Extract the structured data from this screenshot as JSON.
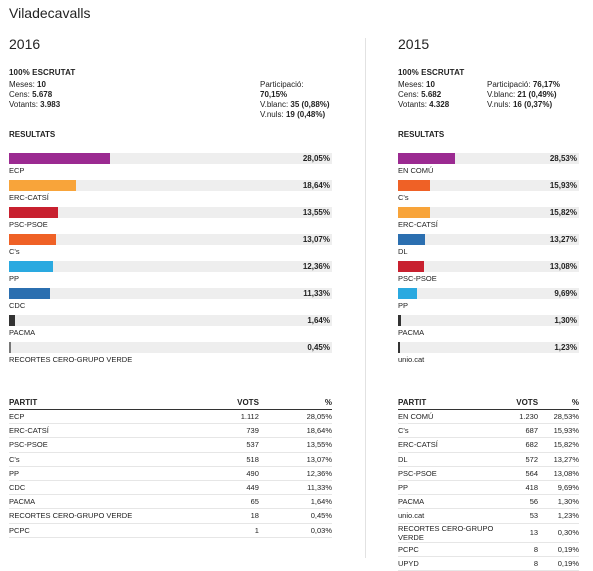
{
  "page_title": "Viladecavalls",
  "colors": {
    "ECP": "#9b2a91",
    "ERC-CATSÍ": "#f8a43a",
    "PSC-PSOE": "#c8202f",
    "C's": "#ef6126",
    "PP": "#2aa9e0",
    "CDC": "#2b6fb0",
    "PACMA": "#333333",
    "RECORTES CERO-GRUPO VERDE": "#777777",
    "EN COMÚ": "#9b2a91",
    "DL": "#2b6fb0",
    "unio.cat": "#333333"
  },
  "elections": [
    {
      "year": "2016",
      "scrutiny": "100% ESCRUTAT",
      "meses_label": "Meses:",
      "meses": "10",
      "cens_label": "Cens:",
      "cens": "5.678",
      "votants_label": "Votants:",
      "votants": "3.983",
      "participacio_label": "Participació:",
      "participacio": "70,15%",
      "vblanc_label": "V.blanc:",
      "vblanc": "35 (0,88%)",
      "vnuls_label": "V.nuls:",
      "vnuls": "19 (0,48%)",
      "results_title": "RESULTATS",
      "bars": [
        {
          "party": "ECP",
          "pct": "28,05%",
          "value": 28.05
        },
        {
          "party": "ERC-CATSÍ",
          "pct": "18,64%",
          "value": 18.64
        },
        {
          "party": "PSC-PSOE",
          "pct": "13,55%",
          "value": 13.55
        },
        {
          "party": "C's",
          "pct": "13,07%",
          "value": 13.07
        },
        {
          "party": "PP",
          "pct": "12,36%",
          "value": 12.36
        },
        {
          "party": "CDC",
          "pct": "11,33%",
          "value": 11.33
        },
        {
          "party": "PACMA",
          "pct": "1,64%",
          "value": 1.64
        },
        {
          "party": "RECORTES CERO-GRUPO VERDE",
          "pct": "0,45%",
          "value": 0.45
        }
      ],
      "table": {
        "headers": [
          "PARTIT",
          "VOTS",
          "%"
        ],
        "rows": [
          [
            "ECP",
            "1.112",
            "28,05%"
          ],
          [
            "ERC-CATSÍ",
            "739",
            "18,64%"
          ],
          [
            "PSC-PSOE",
            "537",
            "13,55%"
          ],
          [
            "C's",
            "518",
            "13,07%"
          ],
          [
            "PP",
            "490",
            "12,36%"
          ],
          [
            "CDC",
            "449",
            "11,33%"
          ],
          [
            "PACMA",
            "65",
            "1,64%"
          ],
          [
            "RECORTES CERO-GRUPO VERDE",
            "18",
            "0,45%"
          ],
          [
            "PCPC",
            "1",
            "0,03%"
          ]
        ]
      }
    },
    {
      "year": "2015",
      "scrutiny": "100% ESCRUTAT",
      "meses_label": "Meses:",
      "meses": "10",
      "cens_label": "Cens:",
      "cens": "5.682",
      "votants_label": "Votants:",
      "votants": "4.328",
      "participacio_label": "Participació:",
      "participacio": "76,17%",
      "vblanc_label": "V.blanc:",
      "vblanc": "21 (0,49%)",
      "vnuls_label": "V.nuls:",
      "vnuls": "16 (0,37%)",
      "results_title": "RESULTATS",
      "bars": [
        {
          "party": "EN COMÚ",
          "pct": "28,53%",
          "value": 28.53
        },
        {
          "party": "C's",
          "pct": "15,93%",
          "value": 15.93
        },
        {
          "party": "ERC-CATSÍ",
          "pct": "15,82%",
          "value": 15.82
        },
        {
          "party": "DL",
          "pct": "13,27%",
          "value": 13.27
        },
        {
          "party": "PSC-PSOE",
          "pct": "13,08%",
          "value": 13.08
        },
        {
          "party": "PP",
          "pct": "9,69%",
          "value": 9.69
        },
        {
          "party": "PACMA",
          "pct": "1,30%",
          "value": 1.3
        },
        {
          "party": "unio.cat",
          "pct": "1,23%",
          "value": 1.23
        }
      ],
      "table": {
        "headers": [
          "PARTIT",
          "VOTS",
          "%"
        ],
        "rows": [
          [
            "EN COMÚ",
            "1.230",
            "28,53%"
          ],
          [
            "C's",
            "687",
            "15,93%"
          ],
          [
            "ERC-CATSÍ",
            "682",
            "15,82%"
          ],
          [
            "DL",
            "572",
            "13,27%"
          ],
          [
            "PSC-PSOE",
            "564",
            "13,08%"
          ],
          [
            "PP",
            "418",
            "9,69%"
          ],
          [
            "PACMA",
            "56",
            "1,30%"
          ],
          [
            "unio.cat",
            "53",
            "1,23%"
          ],
          [
            "RECORTES CERO-GRUPO VERDE",
            "13",
            "0,30%"
          ],
          [
            "PCPC",
            "8",
            "0,19%"
          ],
          [
            "UPYD",
            "8",
            "0,19%"
          ]
        ]
      }
    }
  ]
}
